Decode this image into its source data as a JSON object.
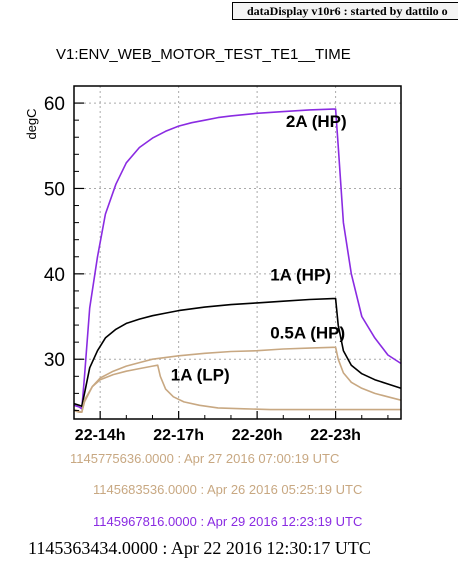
{
  "header": {
    "text": "dataDisplay v10r6 : started by dattilo o"
  },
  "chart_data": {
    "type": "line",
    "title": "V1:ENV_WEB_MOTOR_TEST_TE1__TIME",
    "xlabel": "",
    "ylabel": "degC",
    "xlim": [
      13.0,
      25.5
    ],
    "ylim": [
      23.0,
      62.0
    ],
    "x_ticks": [
      {
        "value": 14,
        "label": "22-14h"
      },
      {
        "value": 17,
        "label": "22-17h"
      },
      {
        "value": 20,
        "label": "22-20h"
      },
      {
        "value": 23,
        "label": "22-23h"
      }
    ],
    "y_ticks": [
      30,
      40,
      50,
      60
    ],
    "grid": true,
    "series": [
      {
        "name": "2A (HP)",
        "color": "#8a2be2",
        "x": [
          13.0,
          13.2,
          13.3,
          13.4,
          13.6,
          13.9,
          14.2,
          14.6,
          15.0,
          15.5,
          16.0,
          16.5,
          17.0,
          17.5,
          18.0,
          18.5,
          19.0,
          20.0,
          21.0,
          22.0,
          22.9,
          23.0,
          23.1,
          23.3,
          23.6,
          24.0,
          24.5,
          25.0,
          25.5
        ],
        "y": [
          24.6,
          24.4,
          24.2,
          28.0,
          36.0,
          42.0,
          47.0,
          50.5,
          53.0,
          54.8,
          55.9,
          56.7,
          57.3,
          57.7,
          58.0,
          58.3,
          58.5,
          58.8,
          59.0,
          59.2,
          59.3,
          59.3,
          55.0,
          46.0,
          40.0,
          35.0,
          32.5,
          30.5,
          29.5
        ]
      },
      {
        "name": "1A  (HP)",
        "color": "#000000",
        "x": [
          13.0,
          13.2,
          13.3,
          13.4,
          13.6,
          13.9,
          14.2,
          14.6,
          15.0,
          15.5,
          16.0,
          16.5,
          17.0,
          18.0,
          19.0,
          20.0,
          21.0,
          22.0,
          22.9,
          23.0,
          23.1,
          23.3,
          23.6,
          24.0,
          24.5,
          25.0,
          25.5
        ],
        "y": [
          24.8,
          24.6,
          24.5,
          26.0,
          29.0,
          31.0,
          32.5,
          33.5,
          34.2,
          34.7,
          35.1,
          35.4,
          35.7,
          36.1,
          36.4,
          36.6,
          36.8,
          37.0,
          37.1,
          37.1,
          34.0,
          31.0,
          29.3,
          28.3,
          27.6,
          27.1,
          26.6
        ]
      },
      {
        "name": "0.5A  (HP)",
        "color": "#c8a882",
        "x": [
          13.0,
          13.2,
          13.3,
          13.4,
          13.7,
          14.0,
          14.5,
          15.0,
          15.5,
          16.0,
          17.0,
          18.0,
          19.0,
          20.0,
          21.0,
          22.0,
          22.9,
          23.0,
          23.1,
          23.3,
          23.6,
          24.0,
          24.5,
          25.0,
          25.5
        ],
        "y": [
          24.1,
          23.9,
          23.8,
          25.0,
          26.8,
          27.8,
          28.6,
          29.2,
          29.6,
          30.0,
          30.4,
          30.7,
          30.9,
          31.0,
          31.2,
          31.3,
          31.4,
          31.4,
          30.0,
          28.4,
          27.3,
          26.6,
          26.0,
          25.6,
          25.2
        ]
      },
      {
        "name": "1A (LP)",
        "color": "#c8a882",
        "x": [
          13.0,
          13.2,
          13.3,
          13.4,
          13.7,
          14.0,
          14.5,
          15.0,
          15.5,
          16.0,
          16.2,
          16.3,
          16.5,
          16.8,
          17.2,
          17.8,
          18.5,
          19.5,
          20.5,
          22.0,
          23.0,
          24.0,
          25.5
        ],
        "y": [
          24.0,
          23.8,
          23.8,
          25.2,
          26.8,
          27.6,
          28.2,
          28.6,
          28.9,
          29.2,
          29.3,
          28.0,
          26.5,
          25.6,
          25.0,
          24.6,
          24.3,
          24.2,
          24.1,
          24.1,
          24.1,
          24.1,
          24.1
        ]
      }
    ],
    "annotations": [
      {
        "text": "2A (HP)",
        "x": 21.1,
        "y": 57.2
      },
      {
        "text": "1A  (HP)",
        "x": 20.5,
        "y": 39.2
      },
      {
        "text": "0.5A  (HP)",
        "x": 20.5,
        "y": 32.4
      },
      {
        "text": "1A (LP)",
        "x": 16.7,
        "y": 27.5
      }
    ]
  },
  "timestamps": {
    "t1": "1145775636.0000 : Apr 27 2016 07:00:19 UTC",
    "t2": "1145683536.0000 : Apr 26 2016 05:25:19 UTC",
    "t3": "1145967816.0000 : Apr 29 2016 12:23:19 UTC",
    "main": "1145363434.0000 : Apr 22 2016 12:30:17 UTC"
  }
}
